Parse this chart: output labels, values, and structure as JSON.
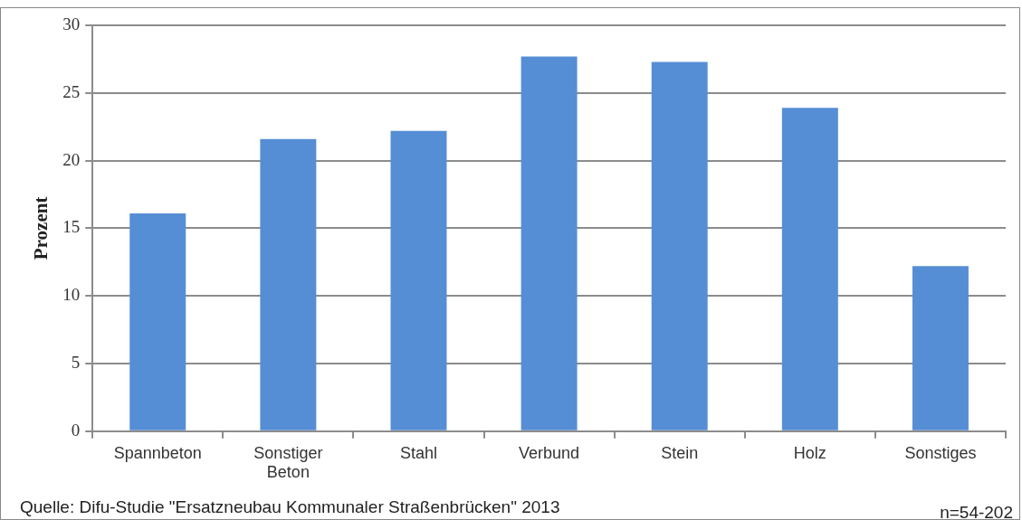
{
  "chart_data": {
    "type": "bar",
    "ylabel": "Prozent",
    "categories": [
      "Spannbeton",
      "Sonstiger Beton",
      "Stahl",
      "Verbund",
      "Stein",
      "Holz",
      "Sonstiges"
    ],
    "values": [
      16.1,
      21.6,
      22.2,
      27.7,
      27.3,
      23.9,
      12.2
    ],
    "color": "#558ed5",
    "ylim": [
      0,
      30
    ],
    "yticks": [
      0,
      5,
      10,
      15,
      20,
      25,
      30
    ],
    "grid": "y",
    "legend": false,
    "annotations": [
      "Quelle: Difu-Studie \"Ersatzneubau Kommunaler Straßenbrücken\" 2013",
      "n=54-202"
    ]
  }
}
